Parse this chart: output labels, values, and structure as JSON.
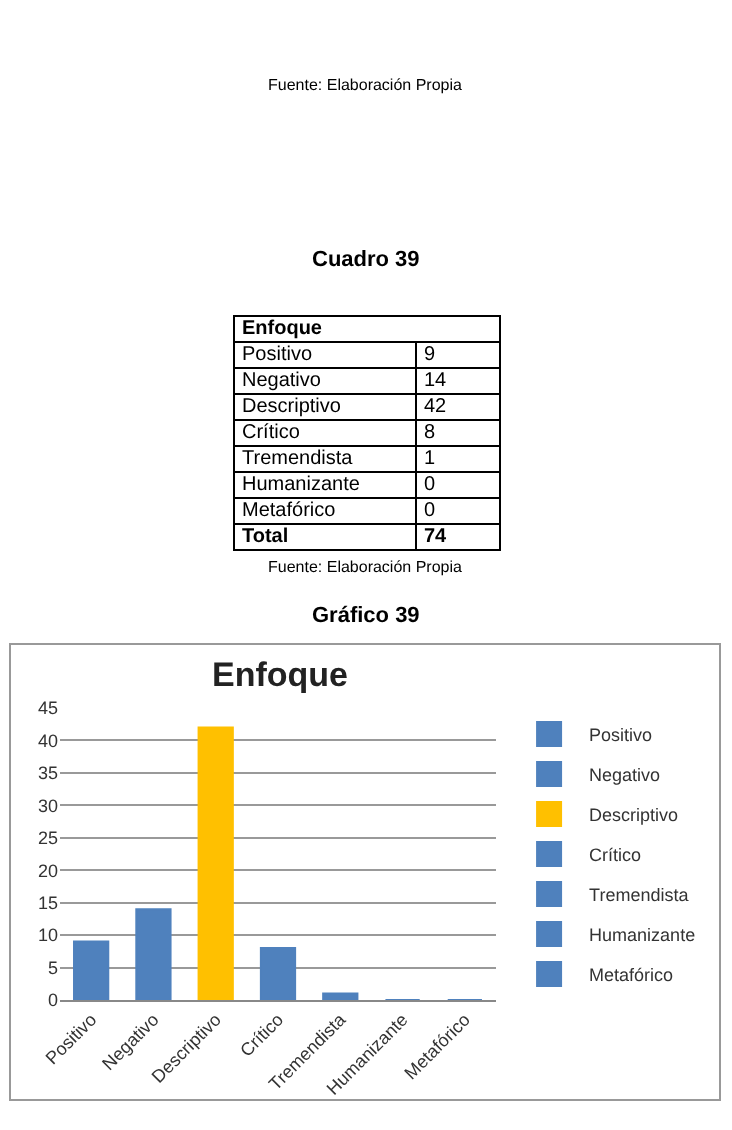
{
  "chart_data": {
    "type": "bar",
    "title": "Enfoque",
    "categories": [
      "Positivo",
      "Negativo",
      "Descriptivo",
      "Crítico",
      "Tremendista",
      "Humanizante",
      "Metafórico"
    ],
    "series": [
      {
        "name": "Positivo",
        "color": "#4f81bd",
        "values": [
          9,
          null,
          null,
          null,
          null,
          null,
          null
        ]
      },
      {
        "name": "Negativo",
        "color": "#4f81bd",
        "values": [
          null,
          14,
          null,
          null,
          null,
          null,
          null
        ]
      },
      {
        "name": "Descriptivo",
        "color": "#ffc000",
        "values": [
          null,
          null,
          42,
          null,
          null,
          null,
          null
        ]
      },
      {
        "name": "Crítico",
        "color": "#4f81bd",
        "values": [
          null,
          null,
          null,
          8,
          null,
          null,
          null
        ]
      },
      {
        "name": "Tremendista",
        "color": "#4f81bd",
        "values": [
          null,
          null,
          null,
          null,
          1,
          null,
          null
        ]
      },
      {
        "name": "Humanizante",
        "color": "#4f81bd",
        "values": [
          null,
          null,
          null,
          null,
          null,
          0,
          null
        ]
      },
      {
        "name": "Metafórico",
        "color": "#4f81bd",
        "values": [
          null,
          null,
          null,
          null,
          null,
          null,
          0
        ]
      }
    ],
    "ylim": [
      0,
      45
    ],
    "yticks": [
      0,
      5,
      10,
      15,
      20,
      25,
      30,
      35,
      40,
      45
    ],
    "grid": "y",
    "legend": "right",
    "annotations": [
      "Fuente: Elaboración Propia",
      "Cuadro 39",
      "Total",
      "74",
      "Fuente: Elaboración Propia",
      "Gráfico 39",
      "9",
      "14",
      "42",
      "8",
      "1",
      "0",
      "0"
    ]
  }
}
